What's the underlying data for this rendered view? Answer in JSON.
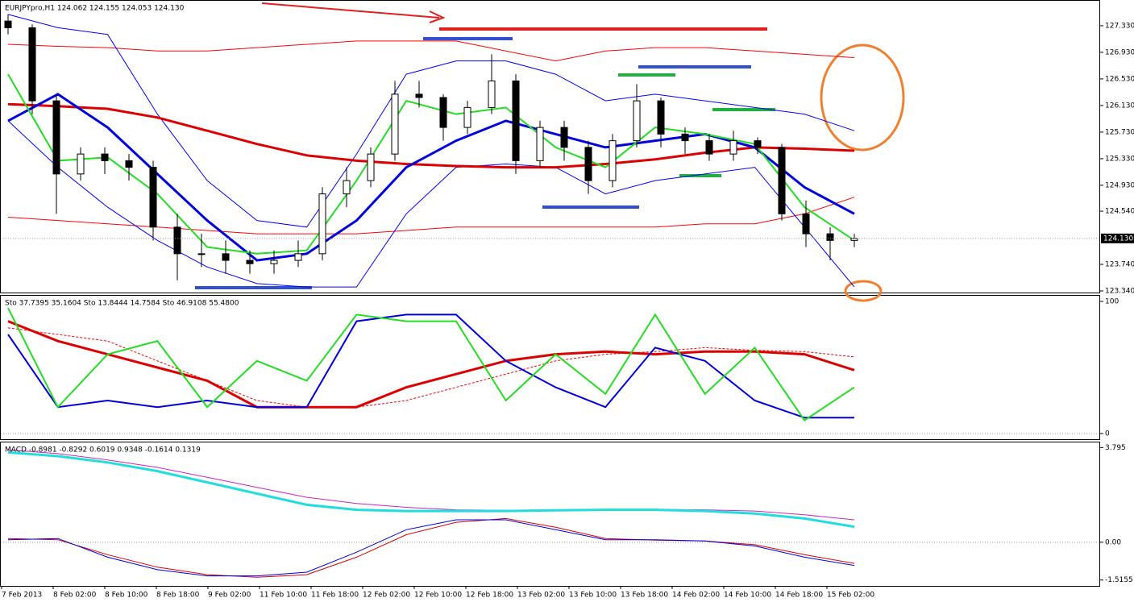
{
  "chart_data": [
    {
      "type": "candlestick",
      "title": "EURJPYpro,H1  124.062 124.155 124.053 124.130",
      "open": [
        127.4,
        127.3,
        126.2,
        125.1,
        125.4,
        125.3,
        125.2,
        124.3,
        123.9,
        123.9,
        123.8,
        123.75,
        123.8,
        123.9,
        124.8,
        125.0,
        125.4,
        126.3,
        126.25,
        125.8,
        126.1,
        126.5,
        125.3,
        125.8,
        125.5,
        125.0,
        125.6,
        126.2,
        125.7,
        125.6,
        125.4,
        125.6,
        125.5,
        124.5,
        124.2,
        124.1
      ],
      "high": [
        127.5,
        127.35,
        126.3,
        125.5,
        125.5,
        125.4,
        125.3,
        124.5,
        124.2,
        124.1,
        123.95,
        123.95,
        124.1,
        124.9,
        125.2,
        125.5,
        126.5,
        126.5,
        126.3,
        126.2,
        126.9,
        126.6,
        125.9,
        125.9,
        125.6,
        125.7,
        126.45,
        126.25,
        125.8,
        125.7,
        125.75,
        125.65,
        125.55,
        124.7,
        124.3,
        124.2
      ],
      "low": [
        127.2,
        126.0,
        124.5,
        125.0,
        125.1,
        125.0,
        124.1,
        123.5,
        123.7,
        123.6,
        123.6,
        123.6,
        123.7,
        123.8,
        124.6,
        124.9,
        125.3,
        126.1,
        125.6,
        125.7,
        126.0,
        125.1,
        125.2,
        125.3,
        124.8,
        124.9,
        125.5,
        125.5,
        125.4,
        125.3,
        125.3,
        125.4,
        124.4,
        124.0,
        123.8,
        124.0
      ],
      "close": [
        127.3,
        126.2,
        125.1,
        125.4,
        125.3,
        125.2,
        124.3,
        123.9,
        123.9,
        123.8,
        123.75,
        123.8,
        123.9,
        124.8,
        125.0,
        125.4,
        126.3,
        126.25,
        125.8,
        126.1,
        126.5,
        125.3,
        125.8,
        125.5,
        125.0,
        125.6,
        126.2,
        125.7,
        125.6,
        125.4,
        125.6,
        125.5,
        124.5,
        124.2,
        124.1,
        124.13
      ],
      "up_color": "#ffffff",
      "down_color": "#000000",
      "ylim": [
        123.316,
        127.705
      ],
      "yticks": [
        {
          "value": 127.33,
          "label": "127.330"
        },
        {
          "value": 126.93,
          "label": "126.930"
        },
        {
          "value": 126.53,
          "label": "126.530"
        },
        {
          "value": 126.13,
          "label": "126.130"
        },
        {
          "value": 125.73,
          "label": "125.730"
        },
        {
          "value": 125.33,
          "label": "125.330"
        },
        {
          "value": 124.93,
          "label": "124.930"
        },
        {
          "value": 124.54,
          "label": "124.540"
        },
        {
          "value": 123.74,
          "label": "123.740"
        },
        {
          "value": 123.34,
          "label": "123.340"
        }
      ],
      "current_price": {
        "value": 124.13,
        "label": "124.130"
      },
      "series": [
        {
          "color": "#ff0000",
          "width": 1,
          "values": [
            127.05,
            127.02,
            127.0,
            126.95,
            126.95,
            127.0,
            127.05,
            127.1,
            127.1,
            127.1,
            126.95,
            126.8,
            126.95,
            127.0,
            127.0,
            126.95,
            126.9,
            126.85
          ]
        },
        {
          "color": "#ff0000",
          "width": 1,
          "values": [
            124.45,
            124.4,
            124.35,
            124.3,
            124.25,
            124.2,
            124.2,
            124.2,
            124.25,
            124.3,
            124.3,
            124.3,
            124.3,
            124.3,
            124.35,
            124.35,
            124.5,
            124.75
          ]
        },
        {
          "color": "#0000ff",
          "width": 1,
          "values": [
            127.5,
            127.3,
            127.2,
            126.0,
            125.0,
            124.4,
            124.3,
            125.4,
            126.6,
            126.8,
            126.8,
            126.6,
            126.2,
            126.3,
            126.2,
            126.1,
            126.0,
            125.75
          ]
        },
        {
          "color": "#0000ff",
          "width": 1,
          "values": [
            125.9,
            125.2,
            124.6,
            124.1,
            123.7,
            123.45,
            123.4,
            123.4,
            124.5,
            125.2,
            125.25,
            125.2,
            124.8,
            125.0,
            125.1,
            125.2,
            124.3,
            123.4
          ]
        },
        {
          "color": "#dd0000",
          "width": 3,
          "values": [
            126.15,
            126.12,
            126.08,
            125.95,
            125.75,
            125.55,
            125.38,
            125.3,
            125.25,
            125.22,
            125.2,
            125.2,
            125.25,
            125.32,
            125.42,
            125.5,
            125.48,
            125.45
          ]
        },
        {
          "color": "#0000dd",
          "width": 3,
          "values": [
            125.9,
            126.3,
            125.8,
            125.1,
            124.4,
            123.8,
            123.9,
            124.4,
            125.2,
            125.6,
            125.9,
            125.7,
            125.5,
            125.6,
            125.7,
            125.5,
            124.9,
            124.5
          ]
        },
        {
          "color": "#22dd22",
          "width": 2,
          "values": [
            126.6,
            125.3,
            125.35,
            124.8,
            124.0,
            123.9,
            123.95,
            125.0,
            126.2,
            126.0,
            126.1,
            125.5,
            125.2,
            125.8,
            125.7,
            125.55,
            124.6,
            124.1
          ]
        }
      ]
    },
    {
      "type": "line",
      "title": "Sto 37.7395 35.1604 Sto 13.8444 14.7584 Sto 46.9108 55.4800",
      "ylim": [
        -4.3,
        104.3
      ],
      "yticks": [
        100,
        0
      ],
      "series": [
        {
          "color": "#ff0000",
          "width": 1,
          "dash": true,
          "values": [
            80,
            75,
            70,
            55,
            40,
            25,
            20,
            20,
            25,
            35,
            45,
            55,
            60,
            62,
            65,
            63,
            62,
            58
          ]
        },
        {
          "color": "#dd0000",
          "width": 3,
          "values": [
            85,
            70,
            60,
            50,
            40,
            20,
            20,
            20,
            35,
            45,
            55,
            60,
            62,
            60,
            62,
            62,
            60,
            48
          ]
        },
        {
          "color": "#0000dd",
          "width": 2,
          "values": [
            75,
            20,
            25,
            20,
            25,
            20,
            20,
            85,
            90,
            90,
            55,
            35,
            20,
            65,
            55,
            25,
            12,
            12
          ]
        },
        {
          "color": "#22dd22",
          "width": 2,
          "values": [
            95,
            20,
            60,
            70,
            20,
            55,
            40,
            90,
            85,
            85,
            25,
            60,
            30,
            90,
            30,
            65,
            10,
            35
          ]
        }
      ]
    },
    {
      "type": "line",
      "title": "MACD -0.8981 -0.8292 0.6019 0.9348 -0.1614 0.1319",
      "ylim": [
        -1.75,
        4.0
      ],
      "yticks": [
        3.795,
        {
          "value": 0,
          "label": "0.00"
        },
        -1.5155
      ],
      "series": [
        {
          "color": "#cc22cc",
          "width": 1,
          "values": [
            3.7,
            3.55,
            3.3,
            3.0,
            2.6,
            2.2,
            1.8,
            1.55,
            1.4,
            1.3,
            1.28,
            1.3,
            1.32,
            1.32,
            1.3,
            1.25,
            1.1,
            0.9
          ]
        },
        {
          "color": "#22dddd",
          "width": 3,
          "values": [
            3.6,
            3.45,
            3.2,
            2.85,
            2.4,
            1.95,
            1.5,
            1.3,
            1.25,
            1.25,
            1.25,
            1.28,
            1.3,
            1.3,
            1.25,
            1.15,
            0.95,
            0.62
          ]
        },
        {
          "color": "#dd0000",
          "width": 1,
          "values": [
            0.15,
            0.1,
            -0.5,
            -1.0,
            -1.3,
            -1.4,
            -1.3,
            -0.6,
            0.3,
            0.8,
            0.95,
            0.6,
            0.15,
            0.08,
            0.05,
            -0.1,
            -0.5,
            -0.85
          ]
        },
        {
          "color": "#0000dd",
          "width": 1,
          "values": [
            0.1,
            0.15,
            -0.6,
            -1.1,
            -1.35,
            -1.35,
            -1.2,
            -0.4,
            0.5,
            0.9,
            0.9,
            0.5,
            0.1,
            0.1,
            0.05,
            -0.15,
            -0.6,
            -0.93
          ]
        }
      ]
    }
  ],
  "time_axis": [
    "7 Feb 2013",
    "8 Feb 02:00",
    "8 Feb 10:00",
    "8 Feb 18:00",
    "9 Feb 02:00",
    "11 Feb 10:00",
    "11 Feb 18:00",
    "12 Feb 02:00",
    "12 Feb 10:00",
    "12 Feb 18:00",
    "13 Feb 02:00",
    "13 Feb 10:00",
    "13 Feb 18:00",
    "14 Feb 02:00",
    "14 Feb 10:00",
    "14 Feb 18:00",
    "15 Feb 02:00"
  ]
}
